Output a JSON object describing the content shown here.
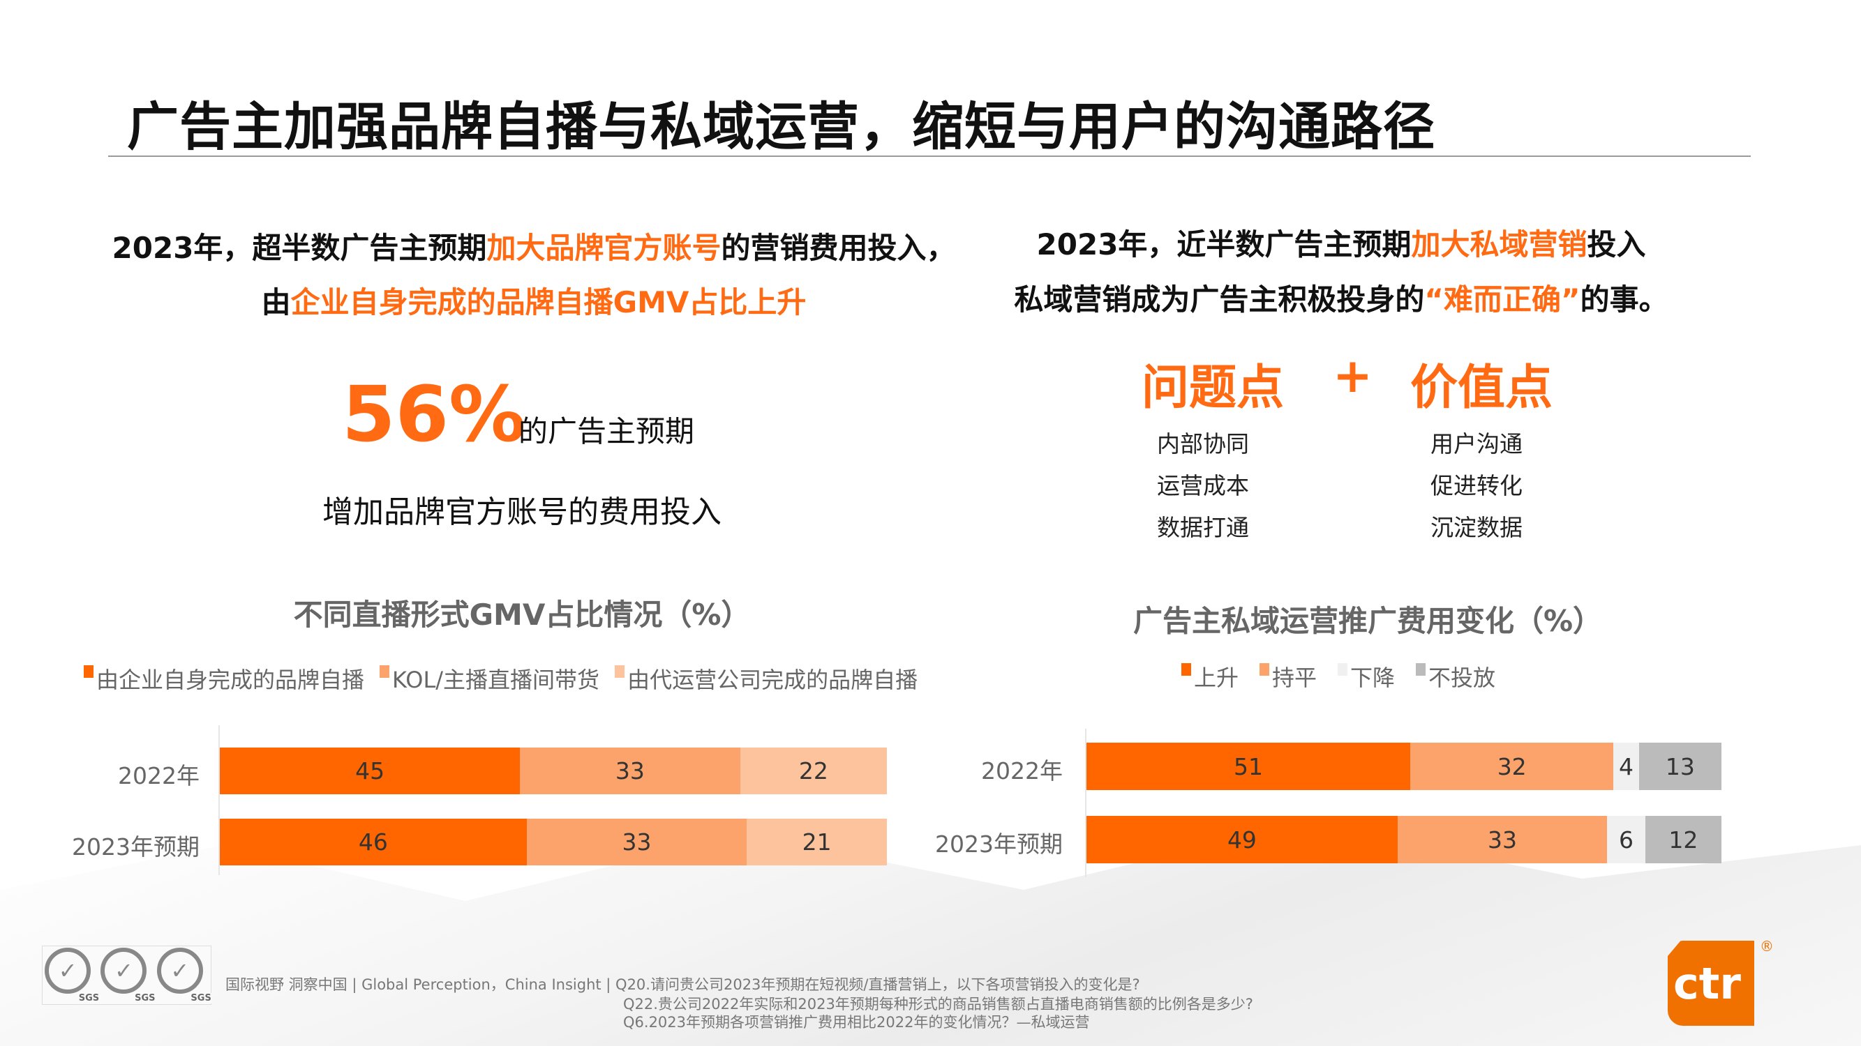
{
  "title": "广告主加强品牌自播与私域运营，缩短与用户的沟通路径",
  "left": {
    "heading1_a": "2023年，超半数广告主预期",
    "heading1_hl": "加大品牌官方账号",
    "heading1_b": "的营销费用投入，",
    "heading2_a": "由",
    "heading2_hl": "企业自身完成的品牌自播GMV占比上升",
    "big_pct": "56%",
    "pct_caption": "的广告主预期",
    "pct_desc": "增加品牌官方账号的费用投入"
  },
  "right": {
    "heading1_a": "2023年，近半数广告主预期",
    "heading1_hl": "加大私域营销",
    "heading1_b": "投入",
    "heading2_a": "私域营销成为广告主积极投身的",
    "heading2_hl": "“难而正确”",
    "heading2_b": "的事。",
    "problem_title": "问题点",
    "plus": "+",
    "value_title": "价值点",
    "problems": [
      "内部协同",
      "运营成本",
      "数据打通"
    ],
    "values": [
      "用户沟通",
      "促进转化",
      "沉淀数据"
    ]
  },
  "chart_data": [
    {
      "type": "bar",
      "stacked": true,
      "orientation": "horizontal",
      "title": "不同直播形式GMV占比情况（%）",
      "categories": [
        "2022年",
        "2023年预期"
      ],
      "series": [
        {
          "name": "由企业自身完成的品牌自播",
          "values": [
            45,
            46
          ],
          "color": "#ff6600"
        },
        {
          "name": "KOL/主播直播间带货",
          "values": [
            33,
            33
          ],
          "color": "#fba36a"
        },
        {
          "name": "由代运营公司完成的品牌自播",
          "values": [
            22,
            21
          ],
          "color": "#fdc39c"
        }
      ],
      "legend": "top"
    },
    {
      "type": "bar",
      "stacked": true,
      "orientation": "horizontal",
      "title": "广告主私域运营推广费用变化（%）",
      "categories": [
        "2022年",
        "2023年预期"
      ],
      "series": [
        {
          "name": "上升",
          "values": [
            51,
            49
          ],
          "color": "#ff6600"
        },
        {
          "name": "持平",
          "values": [
            32,
            33
          ],
          "color": "#fba36a"
        },
        {
          "name": "下降",
          "values": [
            4,
            6
          ],
          "color": "#f0f0f0"
        },
        {
          "name": "不投放",
          "values": [
            13,
            12
          ],
          "color": "#bbbbbb"
        }
      ],
      "legend": "top"
    }
  ],
  "footer": {
    "source": "国际视野  洞察中国 |  Global Perception，China Insight  |",
    "q1": "Q20.请问贵公司2023年预期在短视频/直播营销上，以下各项营销投入的变化是?",
    "q2": "Q22.贵公司2022年实际和2023年预期每种形式的商品销售额占直播电商销售额的比例各是多少?",
    "q3": "Q6.2023年预期各项营销推广费用相比2022年的变化情况？—私域运营",
    "sgs_text": "SGS",
    "logo_text": "ctr",
    "logo_reg": "®"
  }
}
